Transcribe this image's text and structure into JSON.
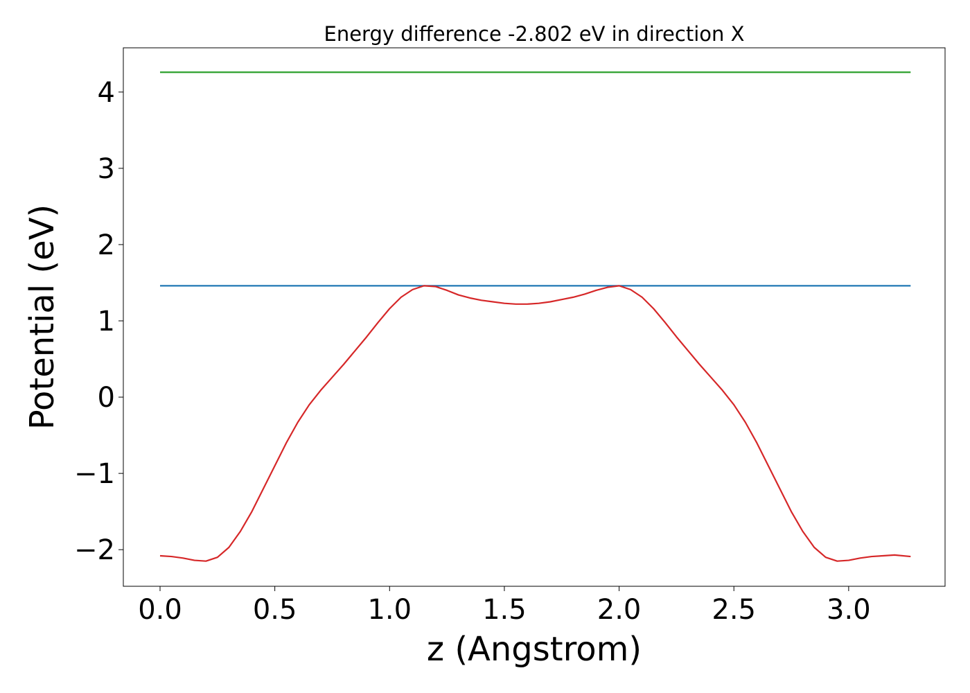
{
  "chart_data": {
    "type": "line",
    "title": "Energy difference -2.802 eV in direction X",
    "xlabel": "z (Angstrom)",
    "ylabel": "Potential (eV)",
    "xlim": [
      -0.16,
      3.42
    ],
    "ylim": [
      -2.48,
      4.58
    ],
    "grid": false,
    "legend": "none",
    "x_ticks": [
      0.0,
      0.5,
      1.0,
      1.5,
      2.0,
      2.5,
      3.0
    ],
    "x_tick_labels": [
      "0.0",
      "0.5",
      "1.0",
      "1.5",
      "2.0",
      "2.5",
      "3.0"
    ],
    "y_ticks": [
      -2,
      -1,
      0,
      1,
      2,
      3,
      4
    ],
    "y_tick_labels": [
      "−2",
      "−1",
      "0",
      "1",
      "2",
      "3",
      "4"
    ],
    "series": [
      {
        "color": "#2ca02c",
        "x": [
          0.0,
          3.27
        ],
        "y": [
          4.26,
          4.26
        ]
      },
      {
        "color": "#1f77b4",
        "x": [
          0.0,
          3.27
        ],
        "y": [
          1.46,
          1.46
        ]
      },
      {
        "color": "#d62728",
        "x": [
          0.0,
          0.05,
          0.1,
          0.15,
          0.2,
          0.25,
          0.3,
          0.35,
          0.4,
          0.45,
          0.5,
          0.55,
          0.6,
          0.65,
          0.7,
          0.75,
          0.8,
          0.85,
          0.9,
          0.95,
          1.0,
          1.05,
          1.1,
          1.15,
          1.2,
          1.25,
          1.3,
          1.35,
          1.4,
          1.45,
          1.5,
          1.55,
          1.6,
          1.65,
          1.7,
          1.75,
          1.8,
          1.85,
          1.9,
          1.95,
          2.0,
          2.05,
          2.1,
          2.15,
          2.2,
          2.25,
          2.3,
          2.35,
          2.4,
          2.45,
          2.5,
          2.55,
          2.6,
          2.65,
          2.7,
          2.75,
          2.8,
          2.85,
          2.9,
          2.95,
          3.0,
          3.05,
          3.1,
          3.15,
          3.2,
          3.27
        ],
        "y": [
          -2.08,
          -2.09,
          -2.11,
          -2.14,
          -2.15,
          -2.1,
          -1.97,
          -1.76,
          -1.5,
          -1.2,
          -0.9,
          -0.6,
          -0.33,
          -0.1,
          0.09,
          0.26,
          0.43,
          0.61,
          0.79,
          0.98,
          1.16,
          1.31,
          1.41,
          1.46,
          1.45,
          1.4,
          1.34,
          1.3,
          1.27,
          1.25,
          1.23,
          1.22,
          1.22,
          1.23,
          1.25,
          1.28,
          1.31,
          1.35,
          1.4,
          1.44,
          1.46,
          1.41,
          1.31,
          1.16,
          0.98,
          0.79,
          0.61,
          0.43,
          0.26,
          0.09,
          -0.1,
          -0.33,
          -0.6,
          -0.9,
          -1.2,
          -1.5,
          -1.76,
          -1.97,
          -2.1,
          -2.15,
          -2.14,
          -2.11,
          -2.09,
          -2.08,
          -2.07,
          -2.09
        ]
      }
    ]
  }
}
